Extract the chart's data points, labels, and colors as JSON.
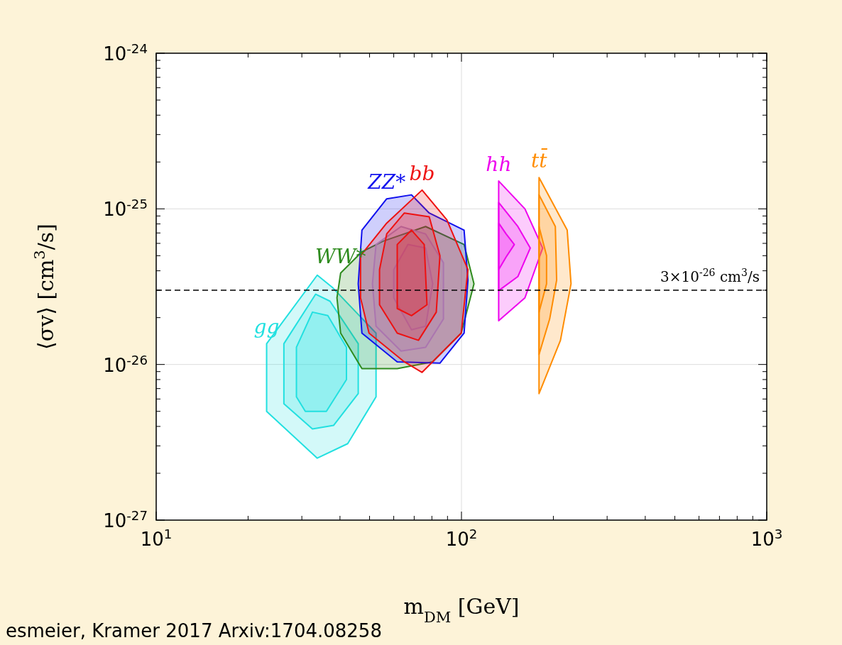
{
  "chart_data": {
    "type": "area",
    "xlabel": "m$_{DM}$ [GeV]",
    "ylabel": "⟨σv⟩ [cm$^{3}$/s]",
    "log": "xy",
    "grid": true,
    "xlim": [
      10,
      1000
    ],
    "ylim": [
      1e-27,
      1e-24
    ],
    "xticks": [
      {
        "value": 10,
        "label": "10$^{1}$"
      },
      {
        "value": 20,
        "label": null
      },
      {
        "value": 30,
        "label": null
      },
      {
        "value": 40,
        "label": null
      },
      {
        "value": 50,
        "label": null
      },
      {
        "value": 60,
        "label": null
      },
      {
        "value": 70,
        "label": null
      },
      {
        "value": 80,
        "label": null
      },
      {
        "value": 90,
        "label": null
      },
      {
        "value": 100,
        "label": "10$^{2}$"
      },
      {
        "value": 200,
        "label": null
      },
      {
        "value": 300,
        "label": null
      },
      {
        "value": 400,
        "label": null
      },
      {
        "value": 500,
        "label": null
      },
      {
        "value": 600,
        "label": null
      },
      {
        "value": 700,
        "label": null
      },
      {
        "value": 800,
        "label": null
      },
      {
        "value": 900,
        "label": null
      },
      {
        "value": 1000,
        "label": "10$^{3}$"
      }
    ],
    "yticks": [
      {
        "value": 1e-27,
        "label": "10$^{-27}$"
      },
      {
        "value": 2e-27,
        "label": null
      },
      {
        "value": 3e-27,
        "label": null
      },
      {
        "value": 4e-27,
        "label": null
      },
      {
        "value": 5e-27,
        "label": null
      },
      {
        "value": 6e-27,
        "label": null
      },
      {
        "value": 7e-27,
        "label": null
      },
      {
        "value": 8e-27,
        "label": null
      },
      {
        "value": 9e-27,
        "label": null
      },
      {
        "value": 1e-26,
        "label": "10$^{-26}$"
      },
      {
        "value": 2e-26,
        "label": null
      },
      {
        "value": 3e-26,
        "label": null
      },
      {
        "value": 4e-26,
        "label": null
      },
      {
        "value": 5e-26,
        "label": null
      },
      {
        "value": 6e-26,
        "label": null
      },
      {
        "value": 7e-26,
        "label": null
      },
      {
        "value": 8e-26,
        "label": null
      },
      {
        "value": 9e-26,
        "label": null
      },
      {
        "value": 1e-25,
        "label": "10$^{-25}$"
      },
      {
        "value": 2e-25,
        "label": null
      },
      {
        "value": 3e-25,
        "label": null
      },
      {
        "value": 4e-25,
        "label": null
      },
      {
        "value": 5e-25,
        "label": null
      },
      {
        "value": 6e-25,
        "label": null
      },
      {
        "value": 7e-25,
        "label": null
      },
      {
        "value": 8e-25,
        "label": null
      },
      {
        "value": 9e-25,
        "label": null
      },
      {
        "value": 1e-24,
        "label": "10$^{-24}$"
      }
    ],
    "ref_lines": [
      {
        "axis": "y",
        "value": 3e-26,
        "label": "3×10$^{-26}$ cm$^{3}$/s",
        "line_style": "dashed",
        "color": "#000000"
      }
    ],
    "annotations": [
      "esmeier, Kramer 2017 Arxiv:1704.08258"
    ],
    "series": [
      {
        "name": "gg",
        "color": "#22e0e0",
        "x": [
          23.0,
          33.7,
          37.7,
          52.5,
          52.5,
          42.4,
          33.7,
          23.0
        ],
        "values": [
          1.36e-26,
          3.75e-26,
          3.14e-26,
          1.59e-26,
          6.2e-27,
          3.1e-27,
          2.5e-27,
          5e-27
        ]
      },
      {
        "color": "#22e0e0",
        "x": [
          33.3,
          37.1,
          45.9,
          45.9,
          38.1,
          32.5,
          26.2,
          26.2,
          26.2
        ],
        "values": [
          2.83e-26,
          2.55e-26,
          1.36e-26,
          6.5e-27,
          4.06e-27,
          3.85e-27,
          5.6e-27,
          7e-27,
          1.36e-26
        ]
      },
      {
        "color": "#22e0e0",
        "x": [
          32.5,
          36.5,
          42.0,
          42.0,
          36.1,
          30.8,
          28.8,
          28.8,
          28.8
        ],
        "values": [
          2.17e-26,
          2.06e-26,
          1.29e-26,
          8e-27,
          5e-27,
          5e-27,
          6.2e-27,
          8.5e-27,
          1.29e-26
        ]
      },
      {
        "name": "WW*",
        "color": "#2e8b1e",
        "x": [
          40.2,
          47.2,
          55.4,
          76.3,
          102,
          109.9,
          99.8,
          80.5,
          61.6,
          47.2,
          40.2,
          39.1
        ],
        "values": [
          3.87e-26,
          5.3e-26,
          6.2e-26,
          7.7e-26,
          5.9e-26,
          3.3e-26,
          1.59e-26,
          1.04e-26,
          9.4e-27,
          9.4e-27,
          1.59e-26,
          2.68e-26
        ]
      },
      {
        "name": "ZZ*",
        "color": "#1010ee",
        "x": [
          56.9,
          68.6,
          78.4,
          102,
          105,
          102,
          85,
          61.6,
          47.2,
          45.9,
          47.2
        ],
        "values": [
          1.16e-25,
          1.23e-25,
          9.4e-26,
          7.3e-26,
          3.48e-26,
          1.59e-26,
          1.02e-26,
          1.04e-26,
          1.59e-26,
          3.3e-26,
          7.3e-26
        ]
      },
      {
        "color": "#9a8fd8",
        "x": [
          52.5,
          63.4,
          76.3,
          87.3,
          87.3,
          76.3,
          63.4,
          52.5,
          51.1
        ],
        "values": [
          5.9e-26,
          7.7e-26,
          6.9e-26,
          4.5e-26,
          1.96e-26,
          1.29e-26,
          1.22e-26,
          1.76e-26,
          3.3e-26
        ]
      },
      {
        "color": "#9a8fd8",
        "x": [
          60.0,
          66.8,
          76.3,
          80.5,
          76.3,
          68.6,
          60.0
        ],
        "values": [
          4.07e-26,
          5.9e-26,
          5.6e-26,
          3.3e-26,
          1.76e-26,
          1.67e-26,
          2.68e-26
        ]
      },
      {
        "name": "bb",
        "color": "#ee1111",
        "x": [
          74.3,
          89.6,
          105,
          99.8,
          74.3,
          65.0,
          49.8,
          46.7,
          46.7,
          56.9
        ],
        "values": [
          1.32e-25,
          8.5e-26,
          4.07e-26,
          1.59e-26,
          8.9e-27,
          1.04e-26,
          1.59e-26,
          2.68e-26,
          5e-26,
          8.1e-26
        ]
      },
      {
        "color": "#ee1111",
        "x": [
          65.0,
          78.4,
          85,
          82.7,
          72.3,
          61.6,
          53.9,
          53.9,
          56.9
        ],
        "values": [
          9.4e-26,
          8.9e-26,
          5e-26,
          2.17e-26,
          1.43e-26,
          1.59e-26,
          2.42e-26,
          4.07e-26,
          6.9e-26
        ]
      },
      {
        "color": "#ee1111",
        "x": [
          68.6,
          75.5,
          77.1,
          68.6,
          61.6,
          61.6,
          61.6
        ],
        "values": [
          7.3e-26,
          5.9e-26,
          2.42e-26,
          2.06e-26,
          2.29e-26,
          3.3e-26,
          5.9e-26
        ]
      },
      {
        "name": "hh",
        "color": "#ee00ee",
        "x": [
          132.4,
          161.4,
          184.5,
          161.4,
          132.4
        ],
        "values": [
          1.51e-25,
          1e-25,
          5.6e-26,
          2.68e-26,
          1.91e-26
        ]
      },
      {
        "color": "#ee00ee",
        "x": [
          132.4,
          153,
          168,
          153,
          132.4
        ],
        "values": [
          1.1e-25,
          7.7e-26,
          5.6e-26,
          3.67e-26,
          2.98e-26
        ]
      },
      {
        "color": "#ee00ee",
        "x": [
          132.4,
          140,
          149,
          140,
          132.4
        ],
        "values": [
          8.1e-26,
          6.9e-26,
          5.9e-26,
          4.9e-26,
          4.07e-26
        ]
      },
      {
        "name": "tt̄",
        "color": "#ff8c00",
        "x": [
          179.5,
          222,
          228.5,
          211,
          179.5
        ],
        "values": [
          1.59e-25,
          7.3e-26,
          3.3e-26,
          1.43e-26,
          6.5e-27
        ]
      },
      {
        "color": "#ff8c00",
        "x": [
          179.5,
          203,
          205,
          194.5,
          179.5
        ],
        "values": [
          1.23e-25,
          7.7e-26,
          3.48e-26,
          1.96e-26,
          1.16e-26
        ]
      },
      {
        "color": "#ff8c00",
        "x": [
          179.5,
          190,
          190,
          179.5
        ],
        "values": [
          7.7e-26,
          5e-26,
          3.3e-26,
          2.17e-26
        ]
      }
    ]
  }
}
